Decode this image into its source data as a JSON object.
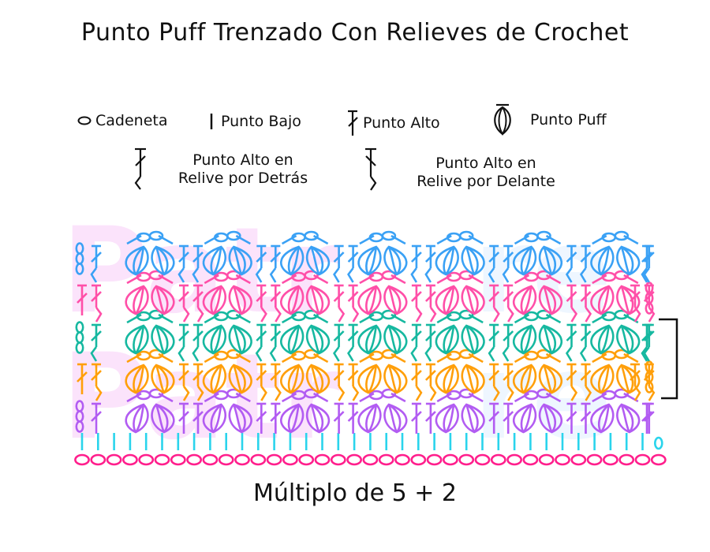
{
  "title": "Punto Puff Trenzado Con Relieves de Crochet",
  "legend": {
    "chain": "Cadeneta",
    "single": "Punto Bajo",
    "double": "Punto Alto",
    "puff": "Punto Puff",
    "bpdc_line1": "Punto Alto en",
    "bpdc_line2": "Relive por Detrás",
    "fpdc_line1": "Punto Alto en",
    "fpdc_line2": "Relive por Delante"
  },
  "footer": "Múltiplo de 5 + 2",
  "chart_data": {
    "type": "crochet-diagram",
    "title": "Punto Puff Trenzado Con Relieves de Crochet",
    "multiple": "5 + 2",
    "foundation_chains": 37,
    "repeats_per_row": 7,
    "rows": [
      {
        "row": 0,
        "color": "#ff1e8c",
        "stitch": "Cadeneta",
        "count": 37
      },
      {
        "row": 1,
        "color": "#2ad4ec",
        "stitch": "Punto Bajo",
        "count": 36
      },
      {
        "row": 2,
        "color": "#b25cf2",
        "stitch": "Punto Puff + Punto Alto",
        "puffs": 14
      },
      {
        "row": 3,
        "color": "#ff9f0a",
        "stitch": "Punto Puff + Relieves",
        "puffs": 14
      },
      {
        "row": 4,
        "color": "#16b8a0",
        "stitch": "Punto Puff + Relieves",
        "puffs": 14
      },
      {
        "row": 5,
        "color": "#ff4fa8",
        "stitch": "Punto Puff + Relieves",
        "puffs": 14
      },
      {
        "row": 6,
        "color": "#3aa1f5",
        "stitch": "Punto Puff + Relieves",
        "puffs": 14
      }
    ],
    "repeat_bracket_rows": [
      4,
      5
    ]
  },
  "colors": {
    "chain": "#ff1e8c",
    "single": "#2ad4ec",
    "purple": "#b25cf2",
    "orange": "#ff9f0a",
    "teal": "#16b8a0",
    "pink": "#ff4fa8",
    "blue": "#3aa1f5",
    "watermark": "#fbe3fb"
  }
}
